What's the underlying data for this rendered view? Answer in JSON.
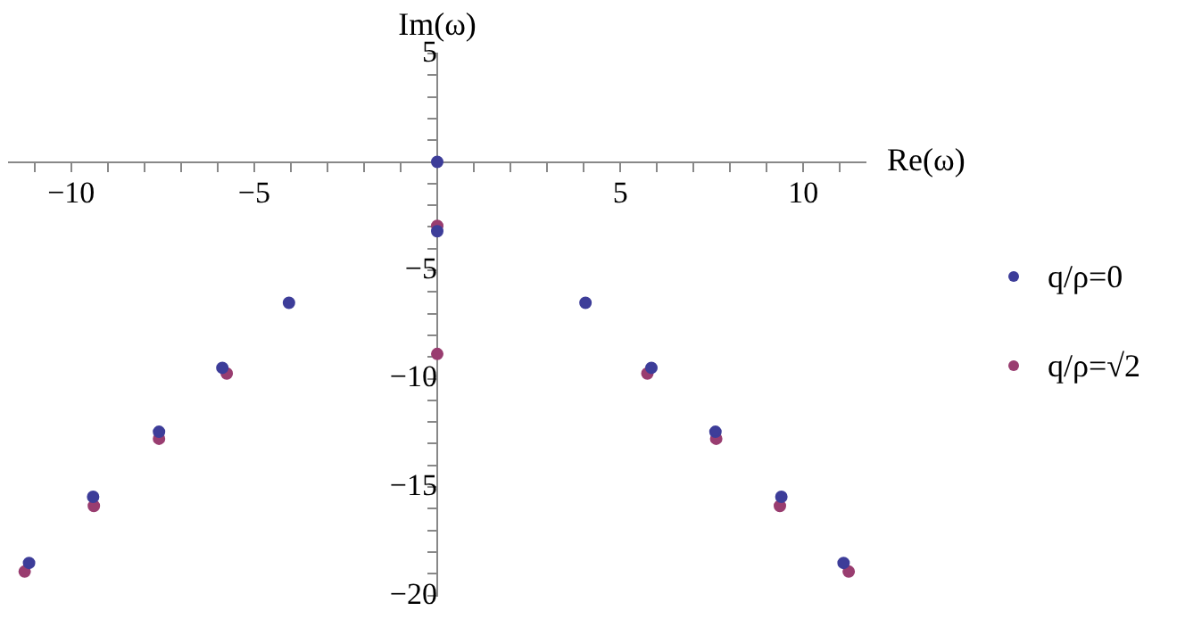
{
  "chart_data": {
    "type": "scatter",
    "xlabel": "Re(ω)",
    "ylabel": "Im(ω)",
    "series": [
      {
        "name": "q/ρ=0",
        "color": "#3d3d99",
        "x": [
          0,
          0,
          -4.05,
          4.05,
          -5.87,
          5.85,
          -7.6,
          7.6,
          -9.4,
          9.4,
          -11.15,
          11.1
        ],
        "values": [
          0,
          -3.2,
          -6.5,
          -6.5,
          -9.5,
          -9.5,
          -12.45,
          -12.45,
          -15.45,
          -15.45,
          -18.5,
          -18.5
        ]
      },
      {
        "name": "q/ρ=√2",
        "color": "#993d70",
        "x": [
          0,
          0,
          -5.75,
          5.74,
          -7.6,
          7.62,
          -9.38,
          9.36,
          -11.27,
          11.24
        ],
        "values": [
          -2.95,
          -8.86,
          -9.76,
          -9.76,
          -12.77,
          -12.77,
          -15.87,
          -15.87,
          -18.9,
          -18.9
        ]
      }
    ],
    "xlim": [
      -11.7,
      11.7
    ],
    "ylim": [
      -20,
      5
    ],
    "xticks": [
      {
        "value": -11,
        "label": null
      },
      -10,
      {
        "value": -9,
        "label": null
      },
      {
        "value": -8,
        "label": null
      },
      {
        "value": -7,
        "label": null
      },
      {
        "value": -6,
        "label": null
      },
      -5,
      {
        "value": -4,
        "label": null
      },
      {
        "value": -3,
        "label": null
      },
      {
        "value": -2,
        "label": null
      },
      {
        "value": -1,
        "label": null
      },
      {
        "value": 1,
        "label": null
      },
      {
        "value": 2,
        "label": null
      },
      {
        "value": 3,
        "label": null
      },
      {
        "value": 4,
        "label": null
      },
      5,
      {
        "value": 6,
        "label": null
      },
      {
        "value": 7,
        "label": null
      },
      {
        "value": 8,
        "label": null
      },
      {
        "value": 9,
        "label": null
      },
      10,
      {
        "value": 11,
        "label": null
      }
    ],
    "yticks": [
      -20,
      {
        "value": -19,
        "label": null
      },
      {
        "value": -18,
        "label": null
      },
      {
        "value": -17,
        "label": null
      },
      {
        "value": -16,
        "label": null
      },
      -15,
      {
        "value": -14,
        "label": null
      },
      {
        "value": -13,
        "label": null
      },
      {
        "value": -12,
        "label": null
      },
      {
        "value": -11,
        "label": null
      },
      -10,
      {
        "value": -9,
        "label": null
      },
      {
        "value": -8,
        "label": null
      },
      {
        "value": -7,
        "label": null
      },
      {
        "value": -6,
        "label": null
      },
      -5,
      {
        "value": -4,
        "label": null
      },
      {
        "value": -3,
        "label": null
      },
      {
        "value": -2,
        "label": null
      },
      {
        "value": -1,
        "label": null
      },
      {
        "value": 1,
        "label": null
      },
      {
        "value": 2,
        "label": null
      },
      {
        "value": 3,
        "label": null
      },
      {
        "value": 4,
        "label": null
      },
      5
    ],
    "grid": false,
    "legend": "right",
    "marker": "circle"
  }
}
